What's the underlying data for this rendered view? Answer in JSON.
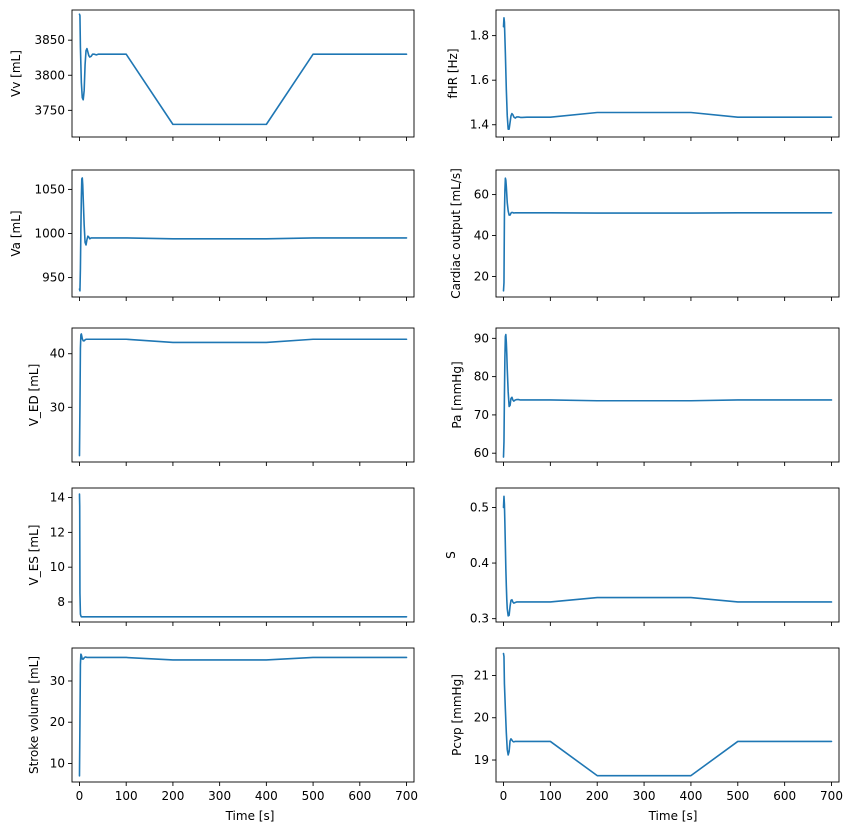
{
  "figure": {
    "line_color": "#1f77b4",
    "background": "#ffffff"
  },
  "chart_data": [
    {
      "type": "line",
      "ylabel": "Vv [mL]",
      "xlabel": "",
      "xlim": [
        -16,
        716
      ],
      "ylim": [
        3712,
        3893
      ],
      "xticks": [
        0,
        100,
        200,
        300,
        400,
        500,
        600,
        700
      ],
      "yticks": [
        3750,
        3800,
        3850
      ],
      "x": [
        0,
        1,
        2,
        4,
        6,
        8,
        10,
        12,
        14,
        16,
        18,
        20,
        22,
        25,
        28,
        32,
        36,
        40,
        50,
        60,
        80,
        100,
        200,
        300,
        400,
        500,
        600,
        700
      ],
      "values": [
        3887,
        3885,
        3840,
        3790,
        3768,
        3765,
        3778,
        3815,
        3835,
        3838,
        3833,
        3828,
        3826,
        3827,
        3830,
        3830,
        3829,
        3830,
        3830,
        3830,
        3830,
        3830,
        3730,
        3730,
        3730,
        3830,
        3830,
        3830
      ]
    },
    {
      "type": "line",
      "ylabel": "fHR [Hz]",
      "xlabel": "",
      "xlim": [
        -16,
        716
      ],
      "ylim": [
        1.345,
        1.915
      ],
      "xticks": [
        0,
        100,
        200,
        300,
        400,
        500,
        600,
        700
      ],
      "yticks": [
        1.4,
        1.6,
        1.8
      ],
      "x": [
        0,
        1,
        2,
        4,
        6,
        8,
        10,
        12,
        14,
        16,
        18,
        20,
        22,
        25,
        28,
        32,
        36,
        40,
        50,
        60,
        80,
        100,
        200,
        300,
        400,
        500,
        600,
        700
      ],
      "values": [
        1.84,
        1.88,
        1.86,
        1.72,
        1.56,
        1.44,
        1.38,
        1.38,
        1.41,
        1.44,
        1.45,
        1.445,
        1.435,
        1.43,
        1.435,
        1.435,
        1.433,
        1.433,
        1.434,
        1.434,
        1.434,
        1.434,
        1.455,
        1.455,
        1.455,
        1.434,
        1.434,
        1.434
      ]
    },
    {
      "type": "line",
      "ylabel": "Va [mL]",
      "xlabel": "",
      "xlim": [
        -16,
        716
      ],
      "ylim": [
        928,
        1072
      ],
      "xticks": [
        0,
        100,
        200,
        300,
        400,
        500,
        600,
        700
      ],
      "yticks": [
        950,
        1000,
        1050
      ],
      "x": [
        0,
        1,
        2,
        3,
        4,
        5,
        6,
        7,
        8,
        10,
        12,
        14,
        16,
        18,
        20,
        22,
        25,
        28,
        32,
        36,
        40,
        50,
        60,
        80,
        100,
        200,
        300,
        400,
        500,
        600,
        700
      ],
      "values": [
        937,
        935,
        960,
        1005,
        1040,
        1062,
        1063,
        1055,
        1040,
        1010,
        990,
        987,
        993,
        997,
        996,
        994,
        995,
        995,
        995,
        995,
        995,
        995,
        995,
        995,
        995,
        994,
        994,
        994,
        995,
        995,
        995
      ]
    },
    {
      "type": "line",
      "ylabel": "Cardiac output [mL/s]",
      "xlabel": "",
      "xlim": [
        -16,
        716
      ],
      "ylim": [
        10,
        72
      ],
      "xticks": [
        0,
        100,
        200,
        300,
        400,
        500,
        600,
        700
      ],
      "yticks": [
        20,
        40,
        60
      ],
      "x": [
        0,
        1,
        2,
        3,
        4,
        5,
        6,
        7,
        8,
        10,
        12,
        14,
        16,
        18,
        20,
        22,
        25,
        28,
        32,
        36,
        40,
        50,
        60,
        80,
        100,
        200,
        300,
        400,
        500,
        600,
        700
      ],
      "values": [
        13,
        17,
        50,
        62,
        68,
        67,
        64,
        60,
        56,
        52,
        50,
        50,
        51,
        51.3,
        51.2,
        51,
        51.1,
        51.1,
        51.1,
        51.1,
        51.1,
        51.1,
        51.1,
        51.1,
        51.1,
        51,
        51,
        51,
        51.1,
        51.1,
        51.1
      ]
    },
    {
      "type": "line",
      "ylabel": "V_ED [mL]",
      "xlabel": "",
      "xlim": [
        -16,
        716
      ],
      "ylim": [
        19.8,
        44.8
      ],
      "xticks": [
        0,
        100,
        200,
        300,
        400,
        500,
        600,
        700
      ],
      "yticks": [
        30,
        40
      ],
      "x": [
        0,
        1,
        2,
        3,
        4,
        5,
        6,
        8,
        10,
        12,
        14,
        16,
        18,
        20,
        25,
        30,
        40,
        50,
        60,
        80,
        100,
        200,
        300,
        400,
        500,
        600,
        700
      ],
      "values": [
        21,
        30,
        41,
        43.5,
        43.7,
        43.3,
        42.8,
        42.4,
        42.4,
        42.6,
        42.7,
        42.7,
        42.7,
        42.7,
        42.7,
        42.7,
        42.7,
        42.7,
        42.7,
        42.7,
        42.7,
        42.1,
        42.1,
        42.1,
        42.7,
        42.7,
        42.7
      ]
    },
    {
      "type": "line",
      "ylabel": "Pa [mmHg]",
      "xlabel": "",
      "xlim": [
        -16,
        716
      ],
      "ylim": [
        57.7,
        92.7
      ],
      "xticks": [
        0,
        100,
        200,
        300,
        400,
        500,
        600,
        700
      ],
      "yticks": [
        60,
        70,
        80,
        90
      ],
      "x": [
        0,
        1,
        2,
        3,
        4,
        5,
        6,
        7,
        8,
        10,
        12,
        14,
        16,
        18,
        20,
        22,
        25,
        28,
        32,
        36,
        40,
        50,
        60,
        80,
        100,
        200,
        300,
        400,
        500,
        600,
        700
      ],
      "values": [
        59,
        63,
        75,
        85,
        90.5,
        91,
        89,
        86,
        82,
        76,
        72.2,
        72.5,
        74.3,
        74.6,
        73.9,
        73.6,
        73.9,
        74,
        74,
        73.9,
        73.9,
        73.9,
        73.9,
        73.9,
        73.9,
        73.7,
        73.7,
        73.7,
        73.9,
        73.9,
        73.9
      ]
    },
    {
      "type": "line",
      "ylabel": "V_ES [mL]",
      "xlabel": "",
      "xlim": [
        -16,
        716
      ],
      "ylim": [
        6.85,
        14.55
      ],
      "xticks": [
        0,
        100,
        200,
        300,
        400,
        500,
        600,
        700
      ],
      "yticks": [
        8,
        10,
        12,
        14
      ],
      "x": [
        0,
        0.5,
        1,
        2,
        3,
        4,
        6,
        10,
        20,
        50,
        100,
        200,
        300,
        400,
        500,
        600,
        700
      ],
      "values": [
        14.2,
        13.5,
        8.5,
        7.3,
        7.2,
        7.15,
        7.15,
        7.15,
        7.15,
        7.15,
        7.15,
        7.15,
        7.15,
        7.15,
        7.15,
        7.15,
        7.15
      ]
    },
    {
      "type": "line",
      "ylabel": "S",
      "xlabel": "",
      "xlim": [
        -16,
        716
      ],
      "ylim": [
        0.294,
        0.535
      ],
      "xticks": [
        0,
        100,
        200,
        300,
        400,
        500,
        600,
        700
      ],
      "yticks": [
        0.3,
        0.4,
        0.5
      ],
      "x": [
        0,
        1,
        2,
        3,
        4,
        5,
        6,
        7,
        8,
        10,
        12,
        14,
        16,
        18,
        20,
        22,
        25,
        28,
        32,
        36,
        40,
        50,
        60,
        80,
        100,
        200,
        300,
        400,
        500,
        600,
        700
      ],
      "values": [
        0.5,
        0.52,
        0.505,
        0.47,
        0.43,
        0.39,
        0.36,
        0.335,
        0.318,
        0.305,
        0.306,
        0.322,
        0.333,
        0.334,
        0.33,
        0.328,
        0.329,
        0.33,
        0.33,
        0.33,
        0.33,
        0.33,
        0.33,
        0.33,
        0.33,
        0.338,
        0.338,
        0.338,
        0.33,
        0.33,
        0.33
      ]
    },
    {
      "type": "line",
      "ylabel": "Stroke volume [mL]",
      "xlabel": "Time [s]",
      "xlim": [
        -16,
        716
      ],
      "ylim": [
        5.5,
        38
      ],
      "xticks": [
        0,
        100,
        200,
        300,
        400,
        500,
        600,
        700
      ],
      "yticks": [
        10,
        20,
        30
      ],
      "x": [
        0,
        1,
        2,
        3,
        4,
        5,
        6,
        8,
        10,
        12,
        14,
        16,
        18,
        20,
        25,
        30,
        40,
        50,
        60,
        80,
        100,
        200,
        300,
        400,
        500,
        600,
        700
      ],
      "values": [
        7,
        20,
        34,
        36.5,
        36.3,
        35.8,
        35.3,
        35.3,
        35.6,
        35.8,
        35.8,
        35.7,
        35.7,
        35.7,
        35.7,
        35.7,
        35.7,
        35.7,
        35.7,
        35.7,
        35.7,
        35.1,
        35.1,
        35.1,
        35.7,
        35.7,
        35.7
      ]
    },
    {
      "type": "line",
      "ylabel": "Pcvp [mmHg]",
      "xlabel": "Time [s]",
      "xlim": [
        -16,
        716
      ],
      "ylim": [
        18.48,
        21.65
      ],
      "xticks": [
        0,
        100,
        200,
        300,
        400,
        500,
        600,
        700
      ],
      "yticks": [
        19,
        20,
        21
      ],
      "x": [
        0,
        1,
        2,
        4,
        6,
        8,
        10,
        12,
        14,
        16,
        18,
        20,
        22,
        25,
        28,
        32,
        36,
        40,
        50,
        60,
        80,
        100,
        200,
        300,
        400,
        500,
        600,
        700
      ],
      "values": [
        21.52,
        21.45,
        20.8,
        20.2,
        19.65,
        19.25,
        19.12,
        19.2,
        19.45,
        19.5,
        19.47,
        19.44,
        19.43,
        19.44,
        19.44,
        19.44,
        19.44,
        19.44,
        19.44,
        19.44,
        19.44,
        19.44,
        18.63,
        18.63,
        18.63,
        19.44,
        19.44,
        19.44
      ]
    }
  ]
}
